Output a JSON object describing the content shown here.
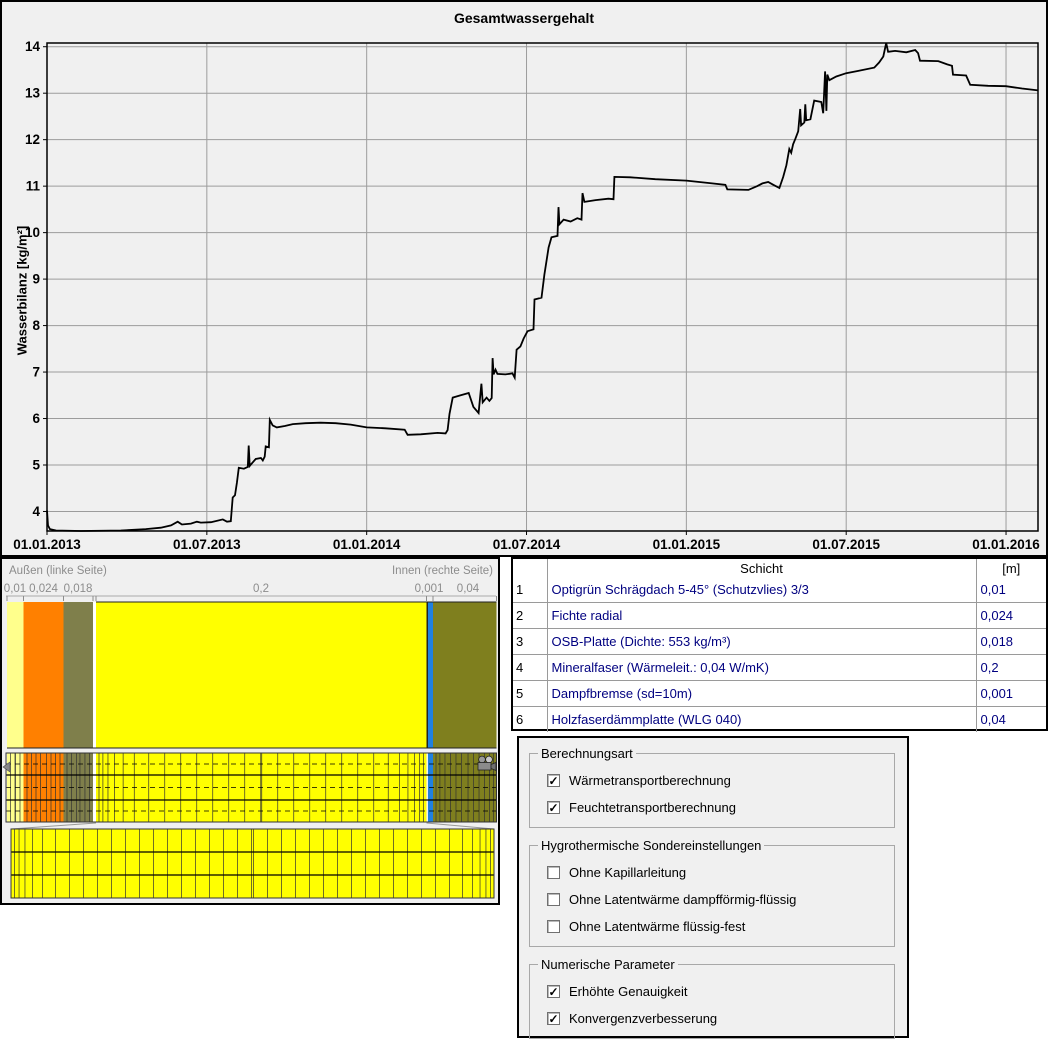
{
  "chart_data": {
    "type": "line",
    "title": "Gesamtwassergehalt",
    "ylabel": "Wasserbilanz [kg/m²]",
    "x_unit": "decimal_year",
    "x_range": [
      2013.0,
      2016.1
    ],
    "y_range": [
      3.58,
      14.08
    ],
    "grid": true,
    "legend_position": "none",
    "line_color": "#000000",
    "grid_color": "#9c9c9c",
    "background": "#f0f0f0",
    "x_ticks": [
      {
        "label": "01.01.2013",
        "t": 2013.0
      },
      {
        "label": "01.07.2013",
        "t": 2013.5
      },
      {
        "label": "01.01.2014",
        "t": 2014.0
      },
      {
        "label": "01.07.2014",
        "t": 2014.5
      },
      {
        "label": "01.01.2015",
        "t": 2015.0
      },
      {
        "label": "01.07.2015",
        "t": 2015.5
      },
      {
        "label": "01.01.2016",
        "t": 2016.0
      }
    ],
    "y_ticks": [
      4,
      5,
      6,
      7,
      8,
      9,
      10,
      11,
      12,
      13,
      14
    ],
    "series": [
      {
        "name": "Gesamtwassergehalt",
        "points": [
          [
            2013.0,
            4.02
          ],
          [
            2013.003,
            3.7
          ],
          [
            2013.009,
            3.62
          ],
          [
            2013.028,
            3.59
          ],
          [
            2013.106,
            3.58
          ],
          [
            2013.231,
            3.59
          ],
          [
            2013.309,
            3.62
          ],
          [
            2013.356,
            3.65
          ],
          [
            2013.388,
            3.7
          ],
          [
            2013.409,
            3.78
          ],
          [
            2013.422,
            3.72
          ],
          [
            2013.45,
            3.74
          ],
          [
            2013.469,
            3.78
          ],
          [
            2013.481,
            3.76
          ],
          [
            2013.513,
            3.77
          ],
          [
            2013.55,
            3.83
          ],
          [
            2013.563,
            3.78
          ],
          [
            2013.575,
            3.79
          ],
          [
            2013.581,
            4.3
          ],
          [
            2013.588,
            4.35
          ],
          [
            2013.594,
            4.62
          ],
          [
            2013.6,
            4.94
          ],
          [
            2013.616,
            4.92
          ],
          [
            2013.628,
            4.96
          ],
          [
            2013.631,
            5.42
          ],
          [
            2013.634,
            4.98
          ],
          [
            2013.644,
            5.06
          ],
          [
            2013.653,
            5.13
          ],
          [
            2013.669,
            5.15
          ],
          [
            2013.675,
            5.1
          ],
          [
            2013.681,
            5.18
          ],
          [
            2013.684,
            5.4
          ],
          [
            2013.694,
            5.38
          ],
          [
            2013.697,
            5.97
          ],
          [
            2013.706,
            5.85
          ],
          [
            2013.719,
            5.81
          ],
          [
            2013.744,
            5.84
          ],
          [
            2013.769,
            5.88
          ],
          [
            2013.809,
            5.9
          ],
          [
            2013.856,
            5.91
          ],
          [
            2013.903,
            5.9
          ],
          [
            2013.95,
            5.87
          ],
          [
            2014.0,
            5.81
          ],
          [
            2014.059,
            5.79
          ],
          [
            2014.119,
            5.76
          ],
          [
            2014.128,
            5.65
          ],
          [
            2014.169,
            5.66
          ],
          [
            2014.222,
            5.69
          ],
          [
            2014.247,
            5.68
          ],
          [
            2014.253,
            5.75
          ],
          [
            2014.259,
            6.1
          ],
          [
            2014.269,
            6.45
          ],
          [
            2014.294,
            6.5
          ],
          [
            2014.319,
            6.55
          ],
          [
            2014.334,
            6.25
          ],
          [
            2014.35,
            6.12
          ],
          [
            2014.359,
            6.75
          ],
          [
            2014.363,
            6.35
          ],
          [
            2014.375,
            6.45
          ],
          [
            2014.384,
            6.38
          ],
          [
            2014.391,
            6.44
          ],
          [
            2014.394,
            7.3
          ],
          [
            2014.397,
            6.95
          ],
          [
            2014.403,
            7.05
          ],
          [
            2014.409,
            6.96
          ],
          [
            2014.434,
            6.95
          ],
          [
            2014.456,
            6.97
          ],
          [
            2014.463,
            6.88
          ],
          [
            2014.469,
            7.48
          ],
          [
            2014.481,
            7.55
          ],
          [
            2014.491,
            7.72
          ],
          [
            2014.503,
            7.88
          ],
          [
            2014.522,
            7.92
          ],
          [
            2014.525,
            8.56
          ],
          [
            2014.547,
            8.6
          ],
          [
            2014.556,
            9.1
          ],
          [
            2014.569,
            9.68
          ],
          [
            2014.578,
            9.9
          ],
          [
            2014.597,
            9.93
          ],
          [
            2014.6,
            10.55
          ],
          [
            2014.603,
            10.18
          ],
          [
            2014.616,
            10.28
          ],
          [
            2014.638,
            10.24
          ],
          [
            2014.659,
            10.31
          ],
          [
            2014.672,
            10.28
          ],
          [
            2014.675,
            10.85
          ],
          [
            2014.681,
            10.66
          ],
          [
            2014.716,
            10.7
          ],
          [
            2014.756,
            10.73
          ],
          [
            2014.772,
            10.72
          ],
          [
            2014.775,
            11.2
          ],
          [
            2014.825,
            11.19
          ],
          [
            2014.903,
            11.15
          ],
          [
            2015.0,
            11.12
          ],
          [
            2015.081,
            11.06
          ],
          [
            2015.122,
            11.03
          ],
          [
            2015.128,
            10.93
          ],
          [
            2015.194,
            10.92
          ],
          [
            2015.222,
            11.0
          ],
          [
            2015.238,
            11.06
          ],
          [
            2015.256,
            11.09
          ],
          [
            2015.272,
            11.03
          ],
          [
            2015.291,
            10.96
          ],
          [
            2015.303,
            11.2
          ],
          [
            2015.313,
            11.45
          ],
          [
            2015.322,
            11.8
          ],
          [
            2015.328,
            11.72
          ],
          [
            2015.334,
            11.9
          ],
          [
            2015.341,
            12.02
          ],
          [
            2015.35,
            12.18
          ],
          [
            2015.356,
            12.66
          ],
          [
            2015.359,
            12.31
          ],
          [
            2015.369,
            12.37
          ],
          [
            2015.372,
            12.76
          ],
          [
            2015.375,
            12.42
          ],
          [
            2015.388,
            12.44
          ],
          [
            2015.4,
            12.84
          ],
          [
            2015.422,
            12.81
          ],
          [
            2015.428,
            12.57
          ],
          [
            2015.434,
            13.47
          ],
          [
            2015.438,
            12.62
          ],
          [
            2015.441,
            13.4
          ],
          [
            2015.447,
            13.28
          ],
          [
            2015.469,
            13.36
          ],
          [
            2015.5,
            13.43
          ],
          [
            2015.538,
            13.48
          ],
          [
            2015.588,
            13.55
          ],
          [
            2015.603,
            13.66
          ],
          [
            2015.616,
            13.79
          ],
          [
            2015.625,
            14.08
          ],
          [
            2015.631,
            13.89
          ],
          [
            2015.653,
            13.91
          ],
          [
            2015.688,
            13.88
          ],
          [
            2015.716,
            13.93
          ],
          [
            2015.725,
            13.86
          ],
          [
            2015.731,
            13.7
          ],
          [
            2015.788,
            13.69
          ],
          [
            2015.816,
            13.62
          ],
          [
            2015.831,
            13.59
          ],
          [
            2015.834,
            13.4
          ],
          [
            2015.875,
            13.38
          ],
          [
            2015.888,
            13.18
          ],
          [
            2015.944,
            13.16
          ],
          [
            2016.0,
            13.15
          ],
          [
            2016.05,
            13.1
          ],
          [
            2016.1,
            13.06
          ]
        ]
      }
    ]
  },
  "assembly": {
    "outside_label": "Außen (linke Seite)",
    "inside_label": "Innen (rechte Seite)",
    "layers": [
      {
        "thickness_label": "0,01",
        "thickness_m": 0.01,
        "color": "#ffff8c"
      },
      {
        "thickness_label": "0,024",
        "thickness_m": 0.024,
        "color": "#ff8000"
      },
      {
        "thickness_label": "0,018",
        "thickness_m": 0.018,
        "color": "#7f7f4b"
      },
      {
        "thickness_label": "0,2",
        "thickness_m": 0.2,
        "color": "#ffff00"
      },
      {
        "thickness_label": "0,001",
        "thickness_m": 0.001,
        "color": "#2080e0"
      },
      {
        "thickness_label": "0,04",
        "thickness_m": 0.04,
        "color": "#7f7f1e"
      }
    ],
    "icons": [
      "monitor-marker-icon",
      "film-camera-icon"
    ]
  },
  "table": {
    "headers": {
      "name": "Schicht",
      "unit": "[m]"
    },
    "text_color": "#000080",
    "rows": [
      {
        "num": "1",
        "name": "Optigrün Schrägdach 5-45° (Schutzvlies) 3/3",
        "thickness": "0,01"
      },
      {
        "num": "2",
        "name": "Fichte radial",
        "thickness": "0,024"
      },
      {
        "num": "3",
        "name": "OSB-Platte (Dichte: 553 kg/m³)",
        "thickness": "0,018"
      },
      {
        "num": "4",
        "name": "Mineralfaser (Wärmeleit.: 0,04 W/mK)",
        "thickness": "0,2"
      },
      {
        "num": "5",
        "name": "Dampfbremse (sd=10m)",
        "thickness": "0,001"
      },
      {
        "num": "6",
        "name": "Holzfaserdämmplatte (WLG 040)",
        "thickness": "0,04"
      }
    ]
  },
  "options": {
    "groups": [
      {
        "legend": "Berechnungsart",
        "items": [
          {
            "label": "Wärmetransportberechnung",
            "checked": true
          },
          {
            "label": "Feuchtetransportberechnung",
            "checked": true
          }
        ]
      },
      {
        "legend": "Hygrothermische Sondereinstellungen",
        "items": [
          {
            "label": "Ohne Kapillarleitung",
            "checked": false
          },
          {
            "label": "Ohne Latentwärme dampfförmig-flüssig",
            "checked": false
          },
          {
            "label": "Ohne Latentwärme flüssig-fest",
            "checked": false
          }
        ]
      },
      {
        "legend": "Numerische Parameter",
        "items": [
          {
            "label": "Erhöhte Genauigkeit",
            "checked": true
          },
          {
            "label": "Konvergenzverbesserung",
            "checked": true
          }
        ]
      }
    ]
  }
}
